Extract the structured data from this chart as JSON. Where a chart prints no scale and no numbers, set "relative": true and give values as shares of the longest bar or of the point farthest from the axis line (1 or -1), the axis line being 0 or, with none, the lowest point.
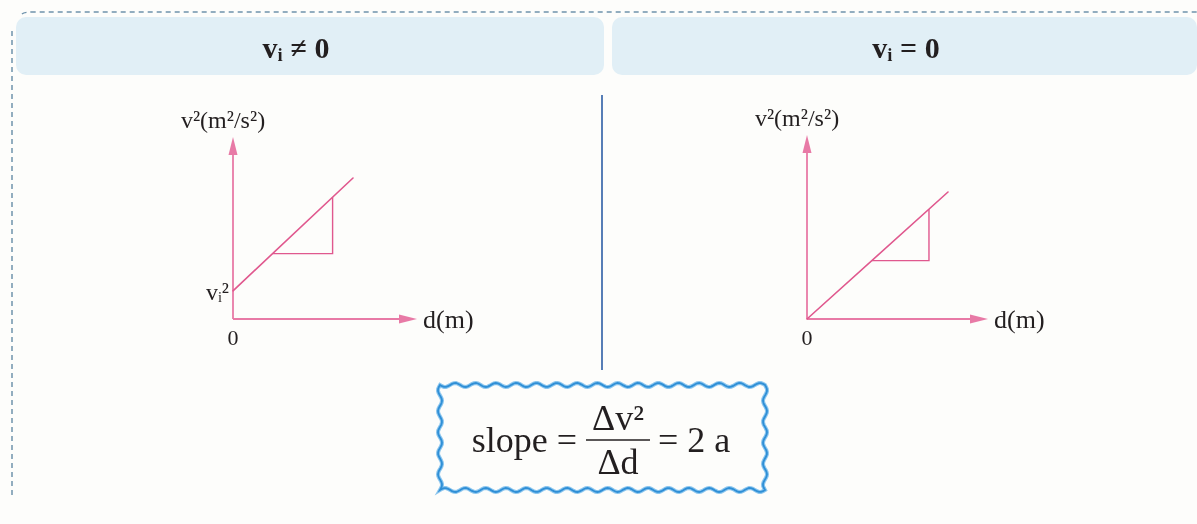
{
  "chart_data": [
    {
      "type": "line",
      "title": "vᵢ ≠ 0",
      "xlabel": "d(m)",
      "ylabel": "v²(m²/s²)",
      "relative": true,
      "categories": [
        null,
        null
      ],
      "series": [
        {
          "color": "#e0588e",
          "values": [
            0.2,
            1
          ]
        }
      ],
      "annotations": [
        "vᵢ²",
        "0"
      ]
    },
    {
      "type": "line",
      "title": "vᵢ = 0",
      "xlabel": "d(m)",
      "ylabel": "v²(m²/s²)",
      "relative": true,
      "categories": [
        null,
        null
      ],
      "series": [
        {
          "color": "#e0588e",
          "values": [
            0,
            1
          ]
        }
      ],
      "annotations": [
        "0"
      ]
    },
    {
      "type": "other",
      "annotations": [
        "slope =",
        "Δv²",
        "Δd",
        "= 2 a"
      ]
    }
  ]
}
